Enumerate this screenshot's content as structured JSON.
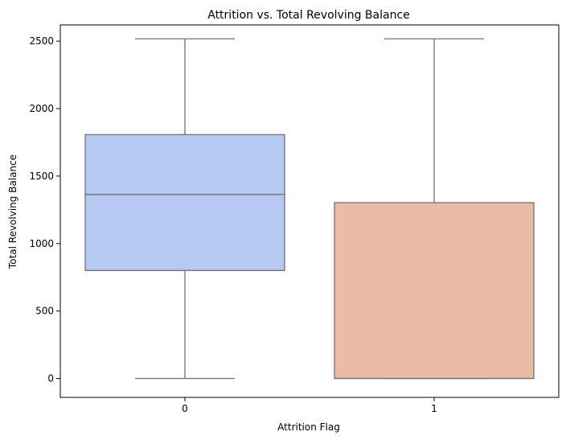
{
  "chart_data": {
    "type": "box",
    "title": "Attrition vs. Total Revolving Balance",
    "xlabel": "Attrition Flag",
    "ylabel": "Total Revolving Balance",
    "ylim": [
      -140,
      2620
    ],
    "yticks": [
      0,
      500,
      1000,
      1500,
      2000,
      2500
    ],
    "grid": false,
    "categories": [
      "0",
      "1"
    ],
    "boxes": [
      {
        "category": "0",
        "whisker_low": 0,
        "q1": 800,
        "median": 1364,
        "q3": 1807,
        "whisker_high": 2517,
        "color": "#b5c9f3"
      },
      {
        "category": "1",
        "whisker_low": 0,
        "q1": 0,
        "median": 0,
        "q3": 1303,
        "whisker_high": 2517,
        "color": "#ebbba5"
      }
    ]
  }
}
